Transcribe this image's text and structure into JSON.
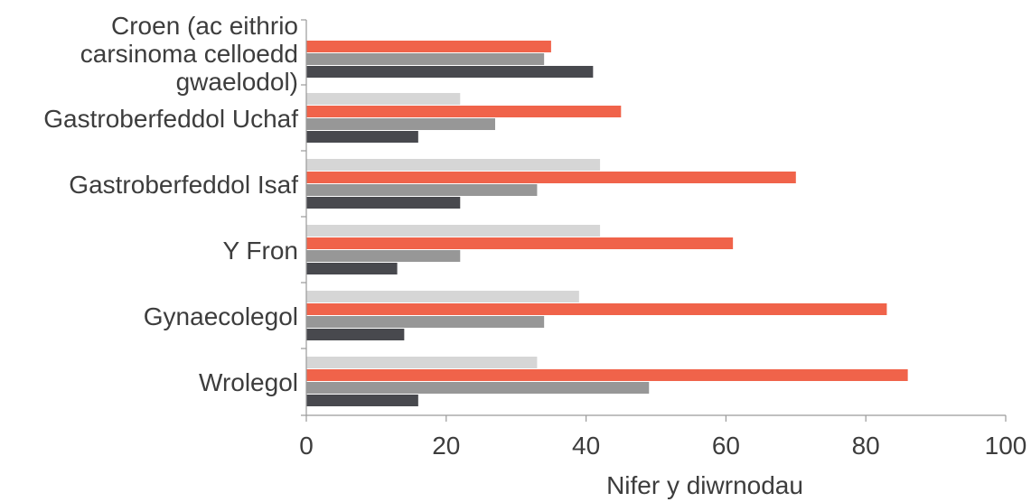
{
  "chart_data": {
    "type": "bar",
    "orientation": "horizontal",
    "title": "",
    "xlabel": "Nifer y diwrnodau",
    "ylabel": "",
    "xlim": [
      0,
      100
    ],
    "xticks": [
      0,
      20,
      40,
      60,
      80,
      100
    ],
    "grid": false,
    "legend": "none",
    "categories": [
      "Croen (ac eithrio carsinoma celloedd gwaelodol)",
      "Gastroberfeddol Uchaf",
      "Gastroberfeddol Isaf",
      "Y Fron",
      "Gynaecolegol",
      "Wrolegol"
    ],
    "category_lines": [
      [
        "Croen (ac eithrio",
        "carsinoma celloedd",
        "gwaelodol)"
      ],
      [
        "Gastroberfeddol Uchaf"
      ],
      [
        "Gastroberfeddol Isaf"
      ],
      [
        "Y Fron"
      ],
      [
        "Gynaecolegol"
      ],
      [
        "Wrolegol"
      ]
    ],
    "series": [
      {
        "color": "#d6d6d6",
        "values": [
          null,
          22,
          42,
          42,
          39,
          33
        ]
      },
      {
        "color": "#f0634a",
        "values": [
          35,
          45,
          70,
          61,
          83,
          86
        ]
      },
      {
        "color": "#979797",
        "values": [
          34,
          27,
          33,
          22,
          34,
          49
        ]
      },
      {
        "color": "#48494e",
        "values": [
          41,
          16,
          22,
          13,
          14,
          16
        ]
      }
    ]
  }
}
